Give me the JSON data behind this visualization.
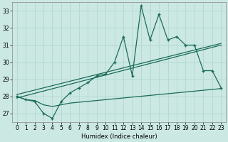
{
  "xlabel": "Humidex (Indice chaleur)",
  "background_color": "#cce8e3",
  "grid_color": "#aad4ce",
  "line_color": "#1a6b5a",
  "x_values": [
    0,
    1,
    2,
    3,
    4,
    5,
    6,
    7,
    8,
    9,
    10,
    11,
    12,
    13,
    14,
    15,
    16,
    17,
    18,
    19,
    20,
    21,
    22,
    23
  ],
  "series_main": [
    28.0,
    27.8,
    27.7,
    27.0,
    26.7,
    27.7,
    28.2,
    28.5,
    28.8,
    29.2,
    29.3,
    30.0,
    31.5,
    29.2,
    33.3,
    31.3,
    32.8,
    31.3,
    31.5,
    31.0,
    31.0,
    29.5,
    29.5,
    28.5
  ],
  "series_flat": [
    28.0,
    27.8,
    27.75,
    27.5,
    27.4,
    27.5,
    27.6,
    27.65,
    27.7,
    27.75,
    27.8,
    27.85,
    27.9,
    27.95,
    28.0,
    28.05,
    28.1,
    28.15,
    28.2,
    28.25,
    28.3,
    28.35,
    28.4,
    28.45
  ],
  "trend1_x0": 0,
  "trend1_y0": 27.9,
  "trend1_x1": 23,
  "trend1_y1": 31.0,
  "trend2_x0": 0,
  "trend2_y0": 28.1,
  "trend2_x1": 23,
  "trend2_y1": 31.1,
  "ylim": [
    26.5,
    33.5
  ],
  "xlim": [
    -0.5,
    23.5
  ],
  "yticks": [
    27,
    28,
    29,
    30,
    31,
    32,
    33
  ],
  "xticks": [
    0,
    1,
    2,
    3,
    4,
    5,
    6,
    7,
    8,
    9,
    10,
    11,
    12,
    13,
    14,
    15,
    16,
    17,
    18,
    19,
    20,
    21,
    22,
    23
  ],
  "tick_labelsize": 5.5,
  "xlabel_fontsize": 6.0
}
